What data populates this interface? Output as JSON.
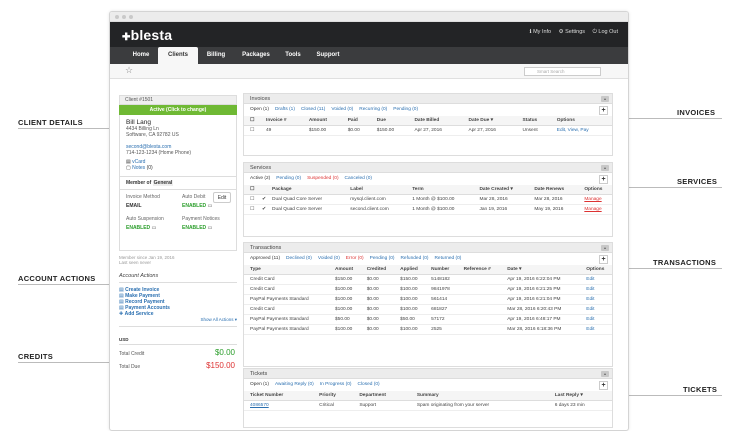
{
  "callouts": {
    "client_details": "CLIENT DETAILS",
    "account_actions": "ACCOUNT ACTIONS",
    "credits": "CREDITS",
    "invoices": "INVOICES",
    "services": "SERVICES",
    "transactions": "TRANSACTIONS",
    "tickets": "TICKETS"
  },
  "brand": {
    "logo": "blesta"
  },
  "toplinks": {
    "my_info": "My Info",
    "settings": "Settings",
    "logout": "Log Out"
  },
  "nav": [
    "Home",
    "Clients",
    "Billing",
    "Packages",
    "Tools",
    "Support"
  ],
  "search": {
    "placeholder": "Smart Search"
  },
  "client": {
    "header": "Client #1501",
    "status": "Active (Click to change)",
    "name": "Bill Lang",
    "address1": "4434 Billing Ln",
    "address2": "Software, CA 92782 US",
    "email": "second@blesta.com",
    "phone": "714-123-1234 (Home Phone)",
    "vcard": "vCard",
    "notes": "Notes",
    "notes_count": "(0)",
    "edit": "Edit",
    "member_of_label": "Member of",
    "member_of": "General",
    "invoice_method_label": "Invoice Method",
    "invoice_method": "EMAIL",
    "auto_debit_label": "Auto Debit",
    "auto_debit": "ENABLED",
    "auto_suspension_label": "Auto Suspension",
    "auto_suspension": "ENABLED",
    "payment_notices_label": "Payment Notices",
    "payment_notices": "ENABLED",
    "member_since": "Member since Jan 19, 2016",
    "last_seen": "Last seen never"
  },
  "actions": {
    "title": "Account Actions",
    "items": [
      "Create Invoice",
      "Make Payment",
      "Record Payment",
      "Payment Accounts",
      "Add Service"
    ],
    "show_all": "Show All Actions"
  },
  "credits": {
    "currency": "USD",
    "total_credit_label": "Total Credit",
    "total_credit": "$0.00",
    "total_due_label": "Total Due",
    "total_due": "$150.00"
  },
  "invoices": {
    "title": "Invoices",
    "tabs": [
      "Open (1)",
      "Drafts (1)",
      "Closed (11)",
      "Voided (0)",
      "Recurring (0)",
      "Pending (0)"
    ],
    "columns": [
      "Invoice #",
      "Amount",
      "Paid",
      "Due",
      "Date Billed",
      "Date Due",
      "Status",
      "Options"
    ],
    "rows": [
      [
        "49",
        "$150.00",
        "$0.00",
        "$150.00",
        "Apr 27, 2016",
        "Apr 27, 2016",
        "Unsent",
        "Edit, View, Pay"
      ]
    ]
  },
  "services": {
    "title": "Services",
    "tabs": [
      "Active (2)",
      "Pending (0)",
      "Suspended (0)",
      "Canceled (0)"
    ],
    "columns": [
      "Package",
      "Label",
      "Term",
      "Date Created",
      "Date Renews",
      "Options"
    ],
    "rows": [
      [
        "Dual Quad Core Server",
        "mysql.client.com",
        "1 Month @ $100.00",
        "Mar 28, 2016",
        "Mar 28, 2016",
        "Manage"
      ],
      [
        "Dual Quad Core Server",
        "second.client.com",
        "1 Month @ $100.00",
        "Jan 19, 2016",
        "May 19, 2016",
        "Manage"
      ]
    ]
  },
  "transactions": {
    "title": "Transactions",
    "tabs": [
      "Approved (11)",
      "Declined (0)",
      "Voided (0)",
      "Error (0)",
      "Pending (0)",
      "Refunded (0)",
      "Returned (0)"
    ],
    "columns": [
      "Type",
      "Amount",
      "Credited",
      "Applied",
      "Number",
      "Reference #",
      "Date",
      "Options"
    ],
    "rows": [
      [
        "Credit Card",
        "$150.00",
        "$0.00",
        "$150.00",
        "5148182",
        "",
        "Apr 19, 2016 6:22:04 PM",
        "Edit"
      ],
      [
        "Credit Card",
        "$100.00",
        "$0.00",
        "$100.00",
        "9841978",
        "",
        "Apr 19, 2016 6:21:25 PM",
        "Edit"
      ],
      [
        "PayPal Payments Standard",
        "$100.00",
        "$0.00",
        "$100.00",
        "561414",
        "",
        "Apr 19, 2016 6:21:04 PM",
        "Edit"
      ],
      [
        "Credit Card",
        "$100.00",
        "$0.00",
        "$100.00",
        "681827",
        "",
        "Mar 28, 2016 6:20:43 PM",
        "Edit"
      ],
      [
        "PayPal Payments Standard",
        "$50.00",
        "$0.00",
        "$50.00",
        "57172",
        "",
        "Apr 19, 2016 6:48:17 PM",
        "Edit"
      ],
      [
        "PayPal Payments Standard",
        "$100.00",
        "$0.00",
        "$100.00",
        "2525",
        "",
        "Mar 28, 2016 6:18:36 PM",
        "Edit"
      ]
    ]
  },
  "tickets": {
    "title": "Tickets",
    "tabs": [
      "Open (1)",
      "Awaiting Reply (0)",
      "In Progress (0)",
      "Closed (0)"
    ],
    "columns": [
      "Ticket Number",
      "Priority",
      "Department",
      "Summary",
      "Last Reply"
    ],
    "rows": [
      [
        "4086570",
        "Critical",
        "Support",
        "Spam originating from your server",
        "6 days 23 min"
      ]
    ]
  }
}
